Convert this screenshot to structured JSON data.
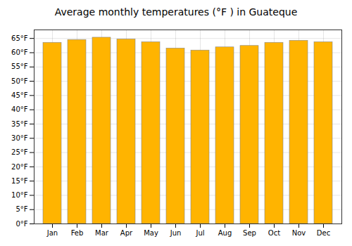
{
  "chart_data": {
    "type": "bar",
    "title": "Average monthly temperatures (°F ) in Guateque",
    "categories": [
      "Jan",
      "Feb",
      "Mar",
      "Apr",
      "May",
      "Jun",
      "Jul",
      "Aug",
      "Sep",
      "Oct",
      "Nov",
      "Dec"
    ],
    "values": [
      63.5,
      64.5,
      65.3,
      64.7,
      63.7,
      61.5,
      60.8,
      61.9,
      62.4,
      63.5,
      64.2,
      63.7
    ],
    "color": "#FFB400",
    "ylim": [
      0,
      68
    ],
    "yticks": [
      {
        "value": 0,
        "label": "0°F"
      },
      {
        "value": 5,
        "label": "5°F"
      },
      {
        "value": 10,
        "label": "10°F"
      },
      {
        "value": 15,
        "label": "15°F"
      },
      {
        "value": 20,
        "label": "20°F"
      },
      {
        "value": 25,
        "label": "25°F"
      },
      {
        "value": 30,
        "label": "30°F"
      },
      {
        "value": 35,
        "label": "35°F"
      },
      {
        "value": 40,
        "label": "40°F"
      },
      {
        "value": 45,
        "label": "45°F"
      },
      {
        "value": 50,
        "label": "50°F"
      },
      {
        "value": 55,
        "label": "55°F"
      },
      {
        "value": 60,
        "label": "60°F"
      },
      {
        "value": 65,
        "label": "65°F"
      }
    ],
    "grid": true
  }
}
